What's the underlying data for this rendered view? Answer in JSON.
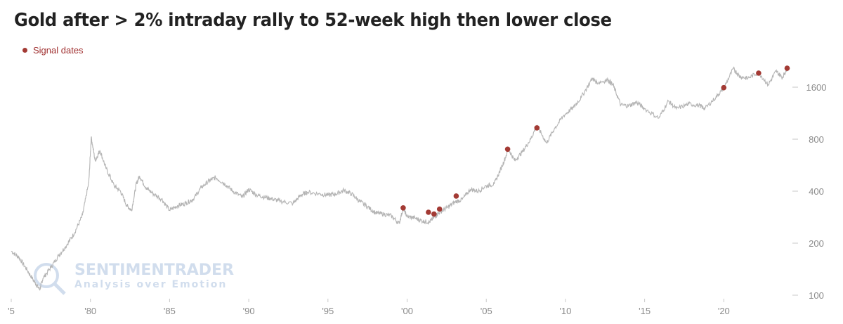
{
  "title": "Gold after > 2% intraday rally to 52-week high then lower close",
  "legend": {
    "label": "Signal dates",
    "color": "#a33a34"
  },
  "watermark": {
    "line1": "SENTIMENTRADER",
    "line2": "Analysis over Emotion"
  },
  "colors": {
    "price_line": "#b4b4b4",
    "signal": "#a33a34",
    "tick_text": "#8a8a8a"
  },
  "chart_data": {
    "type": "line",
    "title": "Gold after > 2% intraday rally to 52-week high then lower close",
    "y_scale": "log",
    "ylim": [
      100,
      2100
    ],
    "xlim": [
      1975,
      2024.2
    ],
    "x_ticks": [
      {
        "v": 1975,
        "label": "'5"
      },
      {
        "v": 1980,
        "label": "'80"
      },
      {
        "v": 1985,
        "label": "'85"
      },
      {
        "v": 1990,
        "label": "'90"
      },
      {
        "v": 1995,
        "label": "'95"
      },
      {
        "v": 2000,
        "label": "'00"
      },
      {
        "v": 2005,
        "label": "'05"
      },
      {
        "v": 2010,
        "label": "'10"
      },
      {
        "v": 2015,
        "label": "'15"
      },
      {
        "v": 2020,
        "label": "'20"
      }
    ],
    "y_ticks": [
      {
        "v": 100,
        "label": "100"
      },
      {
        "v": 200,
        "label": "200"
      },
      {
        "v": 400,
        "label": "400"
      },
      {
        "v": 800,
        "label": "800"
      },
      {
        "v": 1600,
        "label": "1600"
      }
    ],
    "series": [
      {
        "values": [
          [
            1975.0,
            180
          ],
          [
            1975.5,
            165
          ],
          [
            1976.0,
            140
          ],
          [
            1976.5,
            118
          ],
          [
            1976.8,
            108
          ],
          [
            1977.0,
            125
          ],
          [
            1977.5,
            145
          ],
          [
            1978.0,
            170
          ],
          [
            1978.5,
            195
          ],
          [
            1979.0,
            230
          ],
          [
            1979.5,
            290
          ],
          [
            1979.9,
            450
          ],
          [
            1980.05,
            820
          ],
          [
            1980.3,
            600
          ],
          [
            1980.6,
            690
          ],
          [
            1981.0,
            540
          ],
          [
            1981.5,
            430
          ],
          [
            1981.9,
            400
          ],
          [
            1982.3,
            330
          ],
          [
            1982.6,
            310
          ],
          [
            1982.9,
            440
          ],
          [
            1983.1,
            490
          ],
          [
            1983.5,
            420
          ],
          [
            1983.9,
            390
          ],
          [
            1984.5,
            360
          ],
          [
            1985.0,
            310
          ],
          [
            1985.5,
            330
          ],
          [
            1986.0,
            340
          ],
          [
            1986.5,
            360
          ],
          [
            1987.0,
            420
          ],
          [
            1987.5,
            460
          ],
          [
            1987.9,
            480
          ],
          [
            1988.5,
            440
          ],
          [
            1989.0,
            400
          ],
          [
            1989.6,
            370
          ],
          [
            1990.0,
            410
          ],
          [
            1990.5,
            380
          ],
          [
            1991.0,
            370
          ],
          [
            1991.5,
            360
          ],
          [
            1992.0,
            350
          ],
          [
            1992.8,
            340
          ],
          [
            1993.3,
            380
          ],
          [
            1993.7,
            395
          ],
          [
            1994.5,
            385
          ],
          [
            1995.0,
            380
          ],
          [
            1995.5,
            385
          ],
          [
            1996.0,
            405
          ],
          [
            1996.5,
            385
          ],
          [
            1997.0,
            350
          ],
          [
            1997.5,
            325
          ],
          [
            1998.0,
            300
          ],
          [
            1998.5,
            295
          ],
          [
            1999.0,
            288
          ],
          [
            1999.5,
            260
          ],
          [
            1999.75,
            320
          ],
          [
            2000.0,
            285
          ],
          [
            2000.5,
            280
          ],
          [
            2001.0,
            268
          ],
          [
            2001.4,
            265
          ],
          [
            2001.7,
            282
          ],
          [
            2002.0,
            300
          ],
          [
            2002.5,
            320
          ],
          [
            2003.0,
            345
          ],
          [
            2003.5,
            360
          ],
          [
            2004.0,
            410
          ],
          [
            2004.5,
            400
          ],
          [
            2005.0,
            430
          ],
          [
            2005.5,
            440
          ],
          [
            2006.0,
            560
          ],
          [
            2006.4,
            700
          ],
          [
            2006.8,
            600
          ],
          [
            2007.3,
            680
          ],
          [
            2007.8,
            800
          ],
          [
            2008.2,
            960
          ],
          [
            2008.8,
            760
          ],
          [
            2009.3,
            920
          ],
          [
            2009.9,
            1100
          ],
          [
            2010.5,
            1220
          ],
          [
            2011.0,
            1400
          ],
          [
            2011.7,
            1800
          ],
          [
            2012.0,
            1700
          ],
          [
            2012.7,
            1760
          ],
          [
            2013.0,
            1650
          ],
          [
            2013.5,
            1260
          ],
          [
            2014.0,
            1250
          ],
          [
            2014.5,
            1310
          ],
          [
            2015.0,
            1200
          ],
          [
            2015.9,
            1060
          ],
          [
            2016.5,
            1330
          ],
          [
            2017.0,
            1200
          ],
          [
            2017.8,
            1280
          ],
          [
            2018.5,
            1250
          ],
          [
            2018.8,
            1200
          ],
          [
            2019.5,
            1400
          ],
          [
            2020.0,
            1580
          ],
          [
            2020.6,
            2050
          ],
          [
            2021.0,
            1850
          ],
          [
            2021.5,
            1800
          ],
          [
            2022.2,
            1950
          ],
          [
            2022.8,
            1650
          ],
          [
            2023.3,
            1980
          ],
          [
            2023.7,
            1820
          ],
          [
            2024.0,
            2060
          ]
        ]
      }
    ],
    "signals": [
      [
        1999.75,
        320
      ],
      [
        2001.35,
        302
      ],
      [
        2001.7,
        295
      ],
      [
        2002.05,
        315
      ],
      [
        2003.1,
        375
      ],
      [
        2006.35,
        700
      ],
      [
        2008.2,
        930
      ],
      [
        2020.0,
        1590
      ],
      [
        2022.2,
        1930
      ],
      [
        2024.0,
        2060
      ]
    ]
  }
}
